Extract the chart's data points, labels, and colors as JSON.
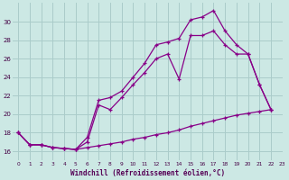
{
  "xlabel": "Windchill (Refroidissement éolien,°C)",
  "bg_color": "#cce8e4",
  "grid_color": "#aaccca",
  "line_color": "#880088",
  "xlim": [
    -0.5,
    23
  ],
  "ylim": [
    15.0,
    32.0
  ],
  "yticks": [
    16,
    18,
    20,
    22,
    24,
    26,
    28,
    30
  ],
  "xticks": [
    0,
    1,
    2,
    3,
    4,
    5,
    6,
    7,
    8,
    9,
    10,
    11,
    12,
    13,
    14,
    15,
    16,
    17,
    18,
    19,
    20,
    21,
    22,
    23
  ],
  "line1_x": [
    0,
    1,
    2,
    3,
    4,
    5,
    6,
    7,
    8,
    9,
    10,
    11,
    12,
    13,
    14,
    15,
    16,
    17,
    18,
    19,
    20,
    21,
    22
  ],
  "line1_y": [
    18,
    16.7,
    16.7,
    16.4,
    16.3,
    16.2,
    16.4,
    16.6,
    16.8,
    17.0,
    17.3,
    17.5,
    17.8,
    18.0,
    18.3,
    18.7,
    19.0,
    19.3,
    19.6,
    19.9,
    20.1,
    20.3,
    20.5
  ],
  "line2_x": [
    0,
    1,
    2,
    3,
    4,
    5,
    6,
    7,
    8,
    9,
    10,
    11,
    12,
    13,
    14,
    15,
    16,
    17,
    18,
    19,
    20,
    21,
    22
  ],
  "line2_y": [
    18,
    16.7,
    16.7,
    16.4,
    16.3,
    16.2,
    17.5,
    21.5,
    21.8,
    22.5,
    24.0,
    25.5,
    27.5,
    27.8,
    28.2,
    30.2,
    30.5,
    31.2,
    29.0,
    27.5,
    26.5,
    23.2,
    20.5
  ],
  "line3_x": [
    0,
    1,
    2,
    3,
    4,
    5,
    6,
    7,
    8,
    9,
    10,
    11,
    12,
    13,
    14,
    15,
    16,
    17,
    18,
    19,
    20,
    21,
    22
  ],
  "line3_y": [
    18,
    16.7,
    16.7,
    16.4,
    16.3,
    16.2,
    17.0,
    21.0,
    20.5,
    21.8,
    23.2,
    24.5,
    26.0,
    26.5,
    23.8,
    28.5,
    28.5,
    29.0,
    27.5,
    26.5,
    26.5,
    23.2,
    20.5
  ]
}
